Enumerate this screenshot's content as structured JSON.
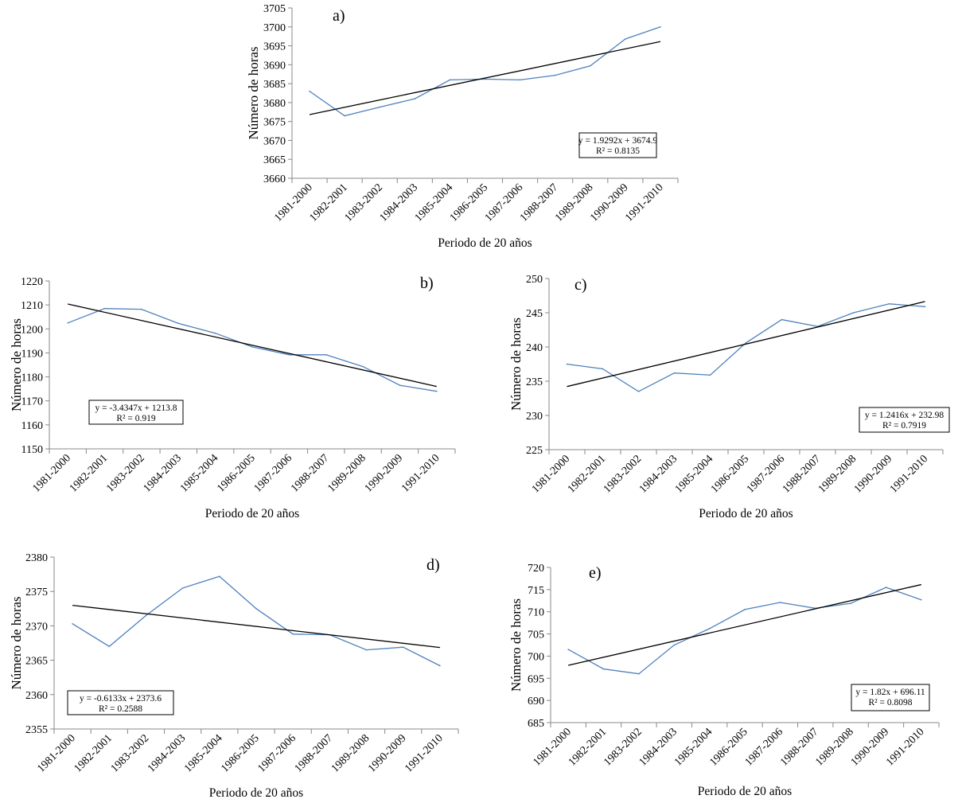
{
  "chart_data": [
    {
      "type": "line",
      "panel_label": "a)",
      "categories": [
        "1981-2000",
        "1982-2001",
        "1983-2002",
        "1984-2003",
        "1985-2004",
        "1986-2005",
        "1987-2006",
        "1988-2007",
        "1989-2008",
        "1990-2009",
        "1991-2010"
      ],
      "series": [
        {
          "values": [
            3683.0,
            3676.5,
            3678.8,
            3681.0,
            3686.0,
            3686.2,
            3686.0,
            3687.2,
            3689.7,
            3696.8,
            3700.0
          ],
          "color": "#4f81bd"
        }
      ],
      "trendline": {
        "slope": 1.9292,
        "intercept": 3674.9,
        "equation": "y = 1.9292x + 3674.9",
        "r2": "R² = 0.8135",
        "color": "#000000"
      },
      "xlabel": "Periodo de 20 años",
      "ylabel": "Número de horas",
      "ylim": [
        3660,
        3705
      ],
      "ytick_step": 5,
      "grid": false
    },
    {
      "type": "line",
      "panel_label": "b)",
      "categories": [
        "1981-2000",
        "1982-2001",
        "1983-2002",
        "1984-2003",
        "1985-2004",
        "1986-2005",
        "1987-2006",
        "1988-2007",
        "1989-2008",
        "1990-2009",
        "1991-2010"
      ],
      "series": [
        {
          "values": [
            1202.5,
            1208.5,
            1208.2,
            1202.3,
            1198.2,
            1192.5,
            1189.2,
            1189.2,
            1184.3,
            1176.5,
            1174.0
          ],
          "color": "#4f81bd"
        }
      ],
      "trendline": {
        "slope": -3.4347,
        "intercept": 1213.8,
        "equation": "y = -3.4347x + 1213.8",
        "r2": "R² = 0.919",
        "color": "#000000"
      },
      "xlabel": "Periodo de 20 años",
      "ylabel": "Número de horas",
      "ylim": [
        1150,
        1220
      ],
      "ytick_step": 10,
      "grid": false
    },
    {
      "type": "line",
      "panel_label": "c)",
      "categories": [
        "1981-2000",
        "1982-2001",
        "1983-2002",
        "1984-2003",
        "1985-2004",
        "1986-2005",
        "1987-2006",
        "1988-2007",
        "1989-2008",
        "1990-2009",
        "1991-2010"
      ],
      "series": [
        {
          "values": [
            237.5,
            236.8,
            233.5,
            236.2,
            235.9,
            240.6,
            244.0,
            243.0,
            245.0,
            246.3,
            245.9
          ],
          "color": "#4f81bd"
        }
      ],
      "trendline": {
        "slope": 1.2416,
        "intercept": 232.98,
        "equation": "y = 1.2416x + 232.98",
        "r2": "R² = 0.7919",
        "color": "#000000"
      },
      "xlabel": "Periodo de 20 años",
      "ylabel": "Número de horas",
      "ylim": [
        225,
        250
      ],
      "ytick_step": 5,
      "grid": false
    },
    {
      "type": "line",
      "panel_label": "d)",
      "categories": [
        "1981-2000",
        "1982-2001",
        "1983-2002",
        "1984-2003",
        "1985-2004",
        "1986-2005",
        "1987-2006",
        "1988-2007",
        "1989-2008",
        "1990-2009",
        "1991-2010"
      ],
      "series": [
        {
          "values": [
            2370.3,
            2367.0,
            2371.5,
            2375.5,
            2377.2,
            2372.5,
            2368.8,
            2368.7,
            2366.5,
            2366.9,
            2364.2
          ],
          "color": "#4f81bd"
        }
      ],
      "trendline": {
        "slope": -0.6133,
        "intercept": 2373.6,
        "equation": "y = -0.6133x + 2373.6",
        "r2": "R² = 0.2588",
        "color": "#000000"
      },
      "xlabel": "Periodo de 20 años",
      "ylabel": "Número de horas",
      "ylim": [
        2355,
        2380
      ],
      "ytick_step": 5,
      "grid": false
    },
    {
      "type": "line",
      "panel_label": "e)",
      "categories": [
        "1981-2000",
        "1982-2001",
        "1983-2002",
        "1984-2003",
        "1985-2004",
        "1986-2005",
        "1987-2006",
        "1988-2007",
        "1989-2008",
        "1990-2009",
        "1991-2010"
      ],
      "series": [
        {
          "values": [
            701.5,
            697.1,
            696.0,
            702.5,
            706.2,
            710.5,
            712.1,
            710.8,
            711.9,
            715.5,
            712.7
          ],
          "color": "#4f81bd"
        }
      ],
      "trendline": {
        "slope": 1.82,
        "intercept": 696.11,
        "equation": "y = 1.82x + 696.11",
        "r2": "R² = 0.8098",
        "color": "#000000"
      },
      "xlabel": "Periodo de 20 años",
      "ylabel": "Número de horas",
      "ylim": [
        685,
        720
      ],
      "ytick_step": 5,
      "grid": false
    }
  ]
}
